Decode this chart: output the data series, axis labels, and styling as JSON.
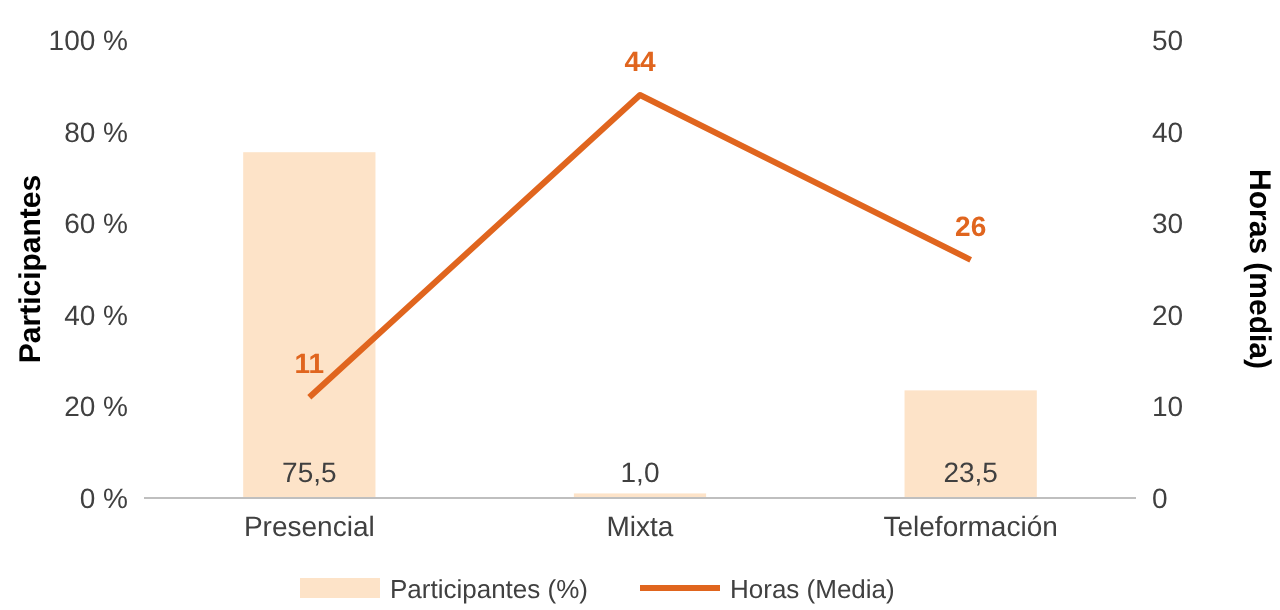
{
  "chart_data": {
    "type": "bar",
    "categories": [
      "Presencial",
      "Mixta",
      "Teleformación"
    ],
    "ylabel": "Participantes",
    "y2label": "Horas (media)",
    "ylim": [
      0,
      100
    ],
    "yticks": [
      {
        "value": 0,
        "label": "0 %"
      },
      {
        "value": 20,
        "label": "20 %"
      },
      {
        "value": 40,
        "label": "40 %"
      },
      {
        "value": 60,
        "label": "60 %"
      },
      {
        "value": 80,
        "label": "80 %"
      },
      {
        "value": 100,
        "label": "100 %"
      }
    ],
    "y2lim": [
      0,
      50
    ],
    "y2ticks": [
      0,
      10,
      20,
      30,
      40,
      50
    ],
    "legend": "bottom",
    "series": [
      {
        "name": "Participantes (%)",
        "color": "#fde3c8",
        "values": [
          75.5,
          1.0,
          23.5
        ],
        "value_labels": [
          "75,5",
          "1,0",
          "23,5"
        ]
      },
      {
        "name": "Horas (Media)",
        "type": "line",
        "axis": "y2",
        "color": "#e0651e",
        "values": [
          11,
          44,
          26
        ],
        "value_labels": [
          "11",
          "44",
          "26"
        ]
      }
    ]
  }
}
